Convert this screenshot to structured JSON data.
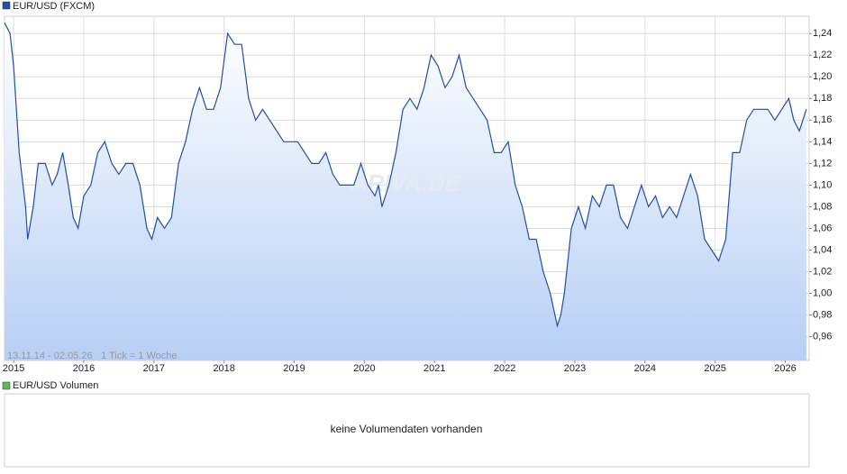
{
  "chart_data": {
    "type": "line",
    "series": [
      {
        "name": "EUR/USD (FXCM)",
        "color": "#1f4fa8",
        "values": [
          1.25,
          1.24,
          1.21,
          1.13,
          1.08,
          1.05,
          1.08,
          1.12,
          1.12,
          1.1,
          1.11,
          1.13,
          1.1,
          1.07,
          1.06,
          1.09,
          1.1,
          1.13,
          1.14,
          1.12,
          1.11,
          1.12,
          1.12,
          1.1,
          1.06,
          1.05,
          1.07,
          1.06,
          1.07,
          1.12,
          1.14,
          1.17,
          1.19,
          1.17,
          1.17,
          1.19,
          1.24,
          1.23,
          1.23,
          1.18,
          1.16,
          1.17,
          1.16,
          1.15,
          1.14,
          1.14,
          1.14,
          1.13,
          1.12,
          1.12,
          1.13,
          1.11,
          1.1,
          1.1,
          1.1,
          1.12,
          1.1,
          1.09,
          1.1,
          1.08,
          1.1,
          1.13,
          1.17,
          1.18,
          1.17,
          1.19,
          1.22,
          1.21,
          1.19,
          1.2,
          1.22,
          1.19,
          1.18,
          1.17,
          1.16,
          1.13,
          1.13,
          1.14,
          1.1,
          1.08,
          1.05,
          1.05,
          1.02,
          1.0,
          0.97,
          0.98,
          1.0,
          1.06,
          1.08,
          1.06,
          1.09,
          1.08,
          1.1,
          1.1,
          1.07,
          1.06,
          1.08,
          1.1,
          1.08,
          1.09,
          1.07,
          1.08,
          1.07,
          1.09,
          1.11,
          1.09,
          1.05,
          1.04,
          1.03,
          1.05,
          1.13,
          1.13,
          1.16,
          1.17,
          1.17,
          1.17,
          1.16,
          1.17,
          1.18,
          1.16,
          1.15,
          1.17
        ]
      }
    ],
    "x": [
      2014.87,
      2014.95,
      2015.0,
      2015.08,
      2015.17,
      2015.2,
      2015.28,
      2015.35,
      2015.45,
      2015.55,
      2015.62,
      2015.7,
      2015.78,
      2015.85,
      2015.92,
      2016.0,
      2016.1,
      2016.2,
      2016.3,
      2016.4,
      2016.5,
      2016.6,
      2016.7,
      2016.8,
      2016.9,
      2016.97,
      2017.05,
      2017.15,
      2017.25,
      2017.35,
      2017.45,
      2017.55,
      2017.65,
      2017.75,
      2017.85,
      2017.95,
      2018.05,
      2018.15,
      2018.25,
      2018.35,
      2018.45,
      2018.55,
      2018.65,
      2018.75,
      2018.85,
      2018.95,
      2019.05,
      2019.15,
      2019.25,
      2019.35,
      2019.45,
      2019.55,
      2019.65,
      2019.75,
      2019.85,
      2019.95,
      2020.05,
      2020.15,
      2020.2,
      2020.25,
      2020.35,
      2020.45,
      2020.55,
      2020.65,
      2020.75,
      2020.85,
      2020.95,
      2021.05,
      2021.15,
      2021.25,
      2021.35,
      2021.45,
      2021.55,
      2021.65,
      2021.75,
      2021.85,
      2021.95,
      2022.05,
      2022.15,
      2022.25,
      2022.35,
      2022.45,
      2022.55,
      2022.65,
      2022.75,
      2022.8,
      2022.85,
      2022.95,
      2023.05,
      2023.15,
      2023.25,
      2023.35,
      2023.45,
      2023.55,
      2023.65,
      2023.75,
      2023.85,
      2023.95,
      2024.05,
      2024.15,
      2024.25,
      2024.35,
      2024.45,
      2024.55,
      2024.65,
      2024.75,
      2024.85,
      2024.95,
      2025.05,
      2025.15,
      2025.25,
      2025.35,
      2025.45,
      2025.55,
      2025.65,
      2025.75,
      2025.85,
      2025.95,
      2026.05,
      2026.12,
      2026.2,
      2026.3
    ],
    "xlim": [
      2014.87,
      2026.34
    ],
    "xticks": [
      2015,
      2016,
      2017,
      2018,
      2019,
      2020,
      2021,
      2022,
      2023,
      2024,
      2025,
      2026
    ],
    "ylim": [
      0.938,
      1.256
    ],
    "yticks": [
      {
        "value": 0.96,
        "label": "0,96"
      },
      {
        "value": 0.98,
        "label": "0,98"
      },
      {
        "value": 1.0,
        "label": "1,00"
      },
      {
        "value": 1.02,
        "label": "1,02"
      },
      {
        "value": 1.04,
        "label": "1,04"
      },
      {
        "value": 1.06,
        "label": "1,06"
      },
      {
        "value": 1.08,
        "label": "1,08"
      },
      {
        "value": 1.1,
        "label": "1,10"
      },
      {
        "value": 1.12,
        "label": "1,12"
      },
      {
        "value": 1.14,
        "label": "1,14"
      },
      {
        "value": 1.16,
        "label": "1,16"
      },
      {
        "value": 1.18,
        "label": "1,18"
      },
      {
        "value": 1.2,
        "label": "1,20"
      },
      {
        "value": 1.22,
        "label": "1,22"
      },
      {
        "value": 1.24,
        "label": "1,24"
      }
    ],
    "grid": true,
    "period": "13.11.14 - 02.05.26",
    "tick_note": "1 Tick = 1 Woche",
    "watermark": "ARIVA.DE"
  },
  "volume_panel": {
    "title": "EUR/USD Volumen",
    "color": "#5cb85c",
    "message": "keine Volumendaten vorhanden"
  }
}
